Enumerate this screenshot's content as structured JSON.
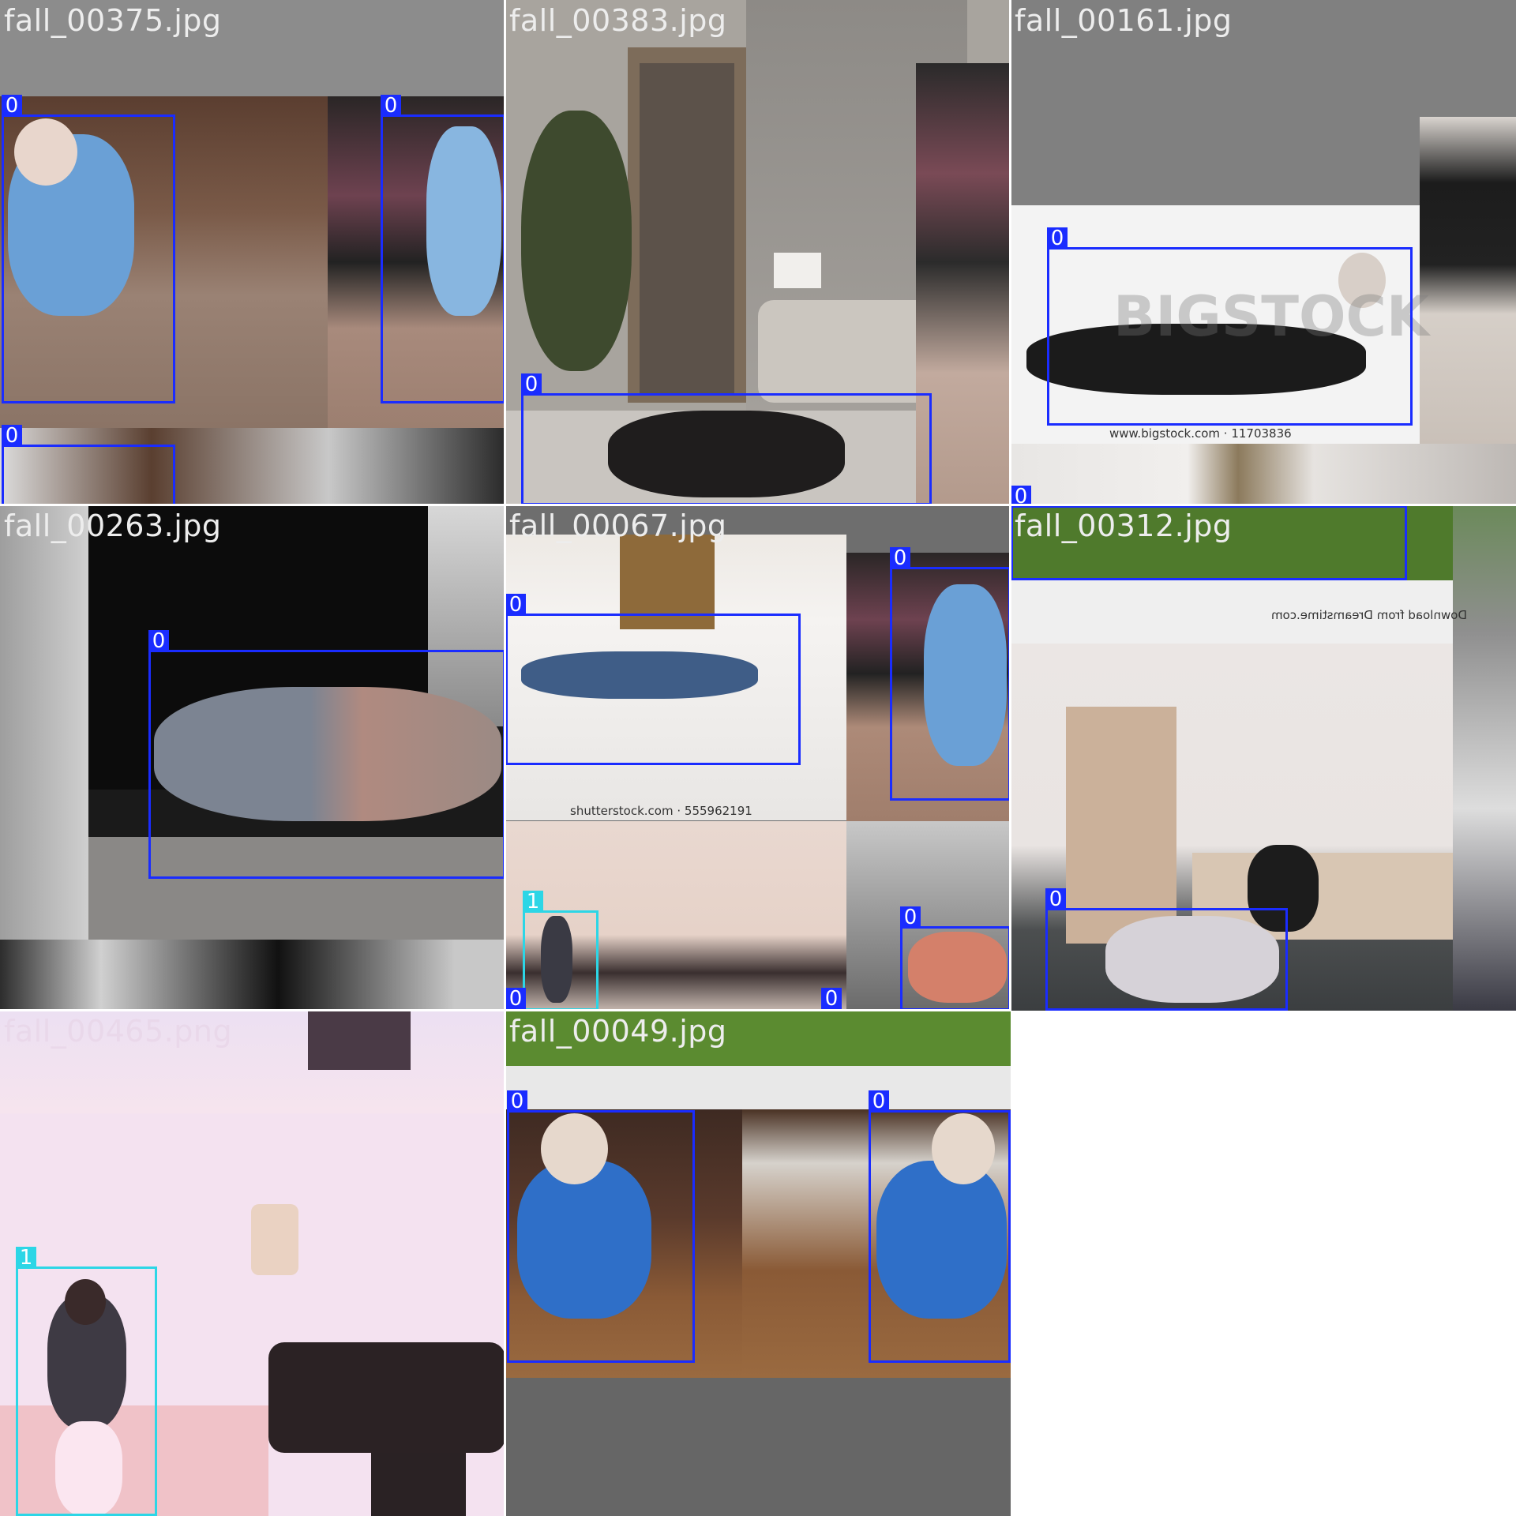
{
  "tiles": [
    {
      "title": "fall_00375.jpg",
      "labels": [
        "0",
        "0",
        "0"
      ]
    },
    {
      "title": "fall_00383.jpg",
      "labels": [
        "0"
      ]
    },
    {
      "title": "fall_00161.jpg",
      "labels": [
        "0",
        "0"
      ],
      "watermark": "www.bigstock.com · 11703836",
      "brand": "BIGSTOCK"
    },
    {
      "title": "fall_00263.jpg",
      "labels": [
        "0"
      ]
    },
    {
      "title": "fall_00067.jpg",
      "labels": [
        "0",
        "0",
        "1",
        "0",
        "0",
        "0"
      ],
      "watermark": "shutterstock.com · 555962191"
    },
    {
      "title": "fall_00312.jpg",
      "labels": [
        "0"
      ],
      "watermark": "Download from Dreamstime.com"
    },
    {
      "title": "fall_00465.png",
      "labels": [
        "1"
      ]
    },
    {
      "title": "fall_00049.jpg",
      "labels": [
        "0",
        "0"
      ]
    }
  ],
  "colors": {
    "class_0": "#1a2cff",
    "class_1": "#2cd6e6",
    "title_text": "#ededed"
  }
}
